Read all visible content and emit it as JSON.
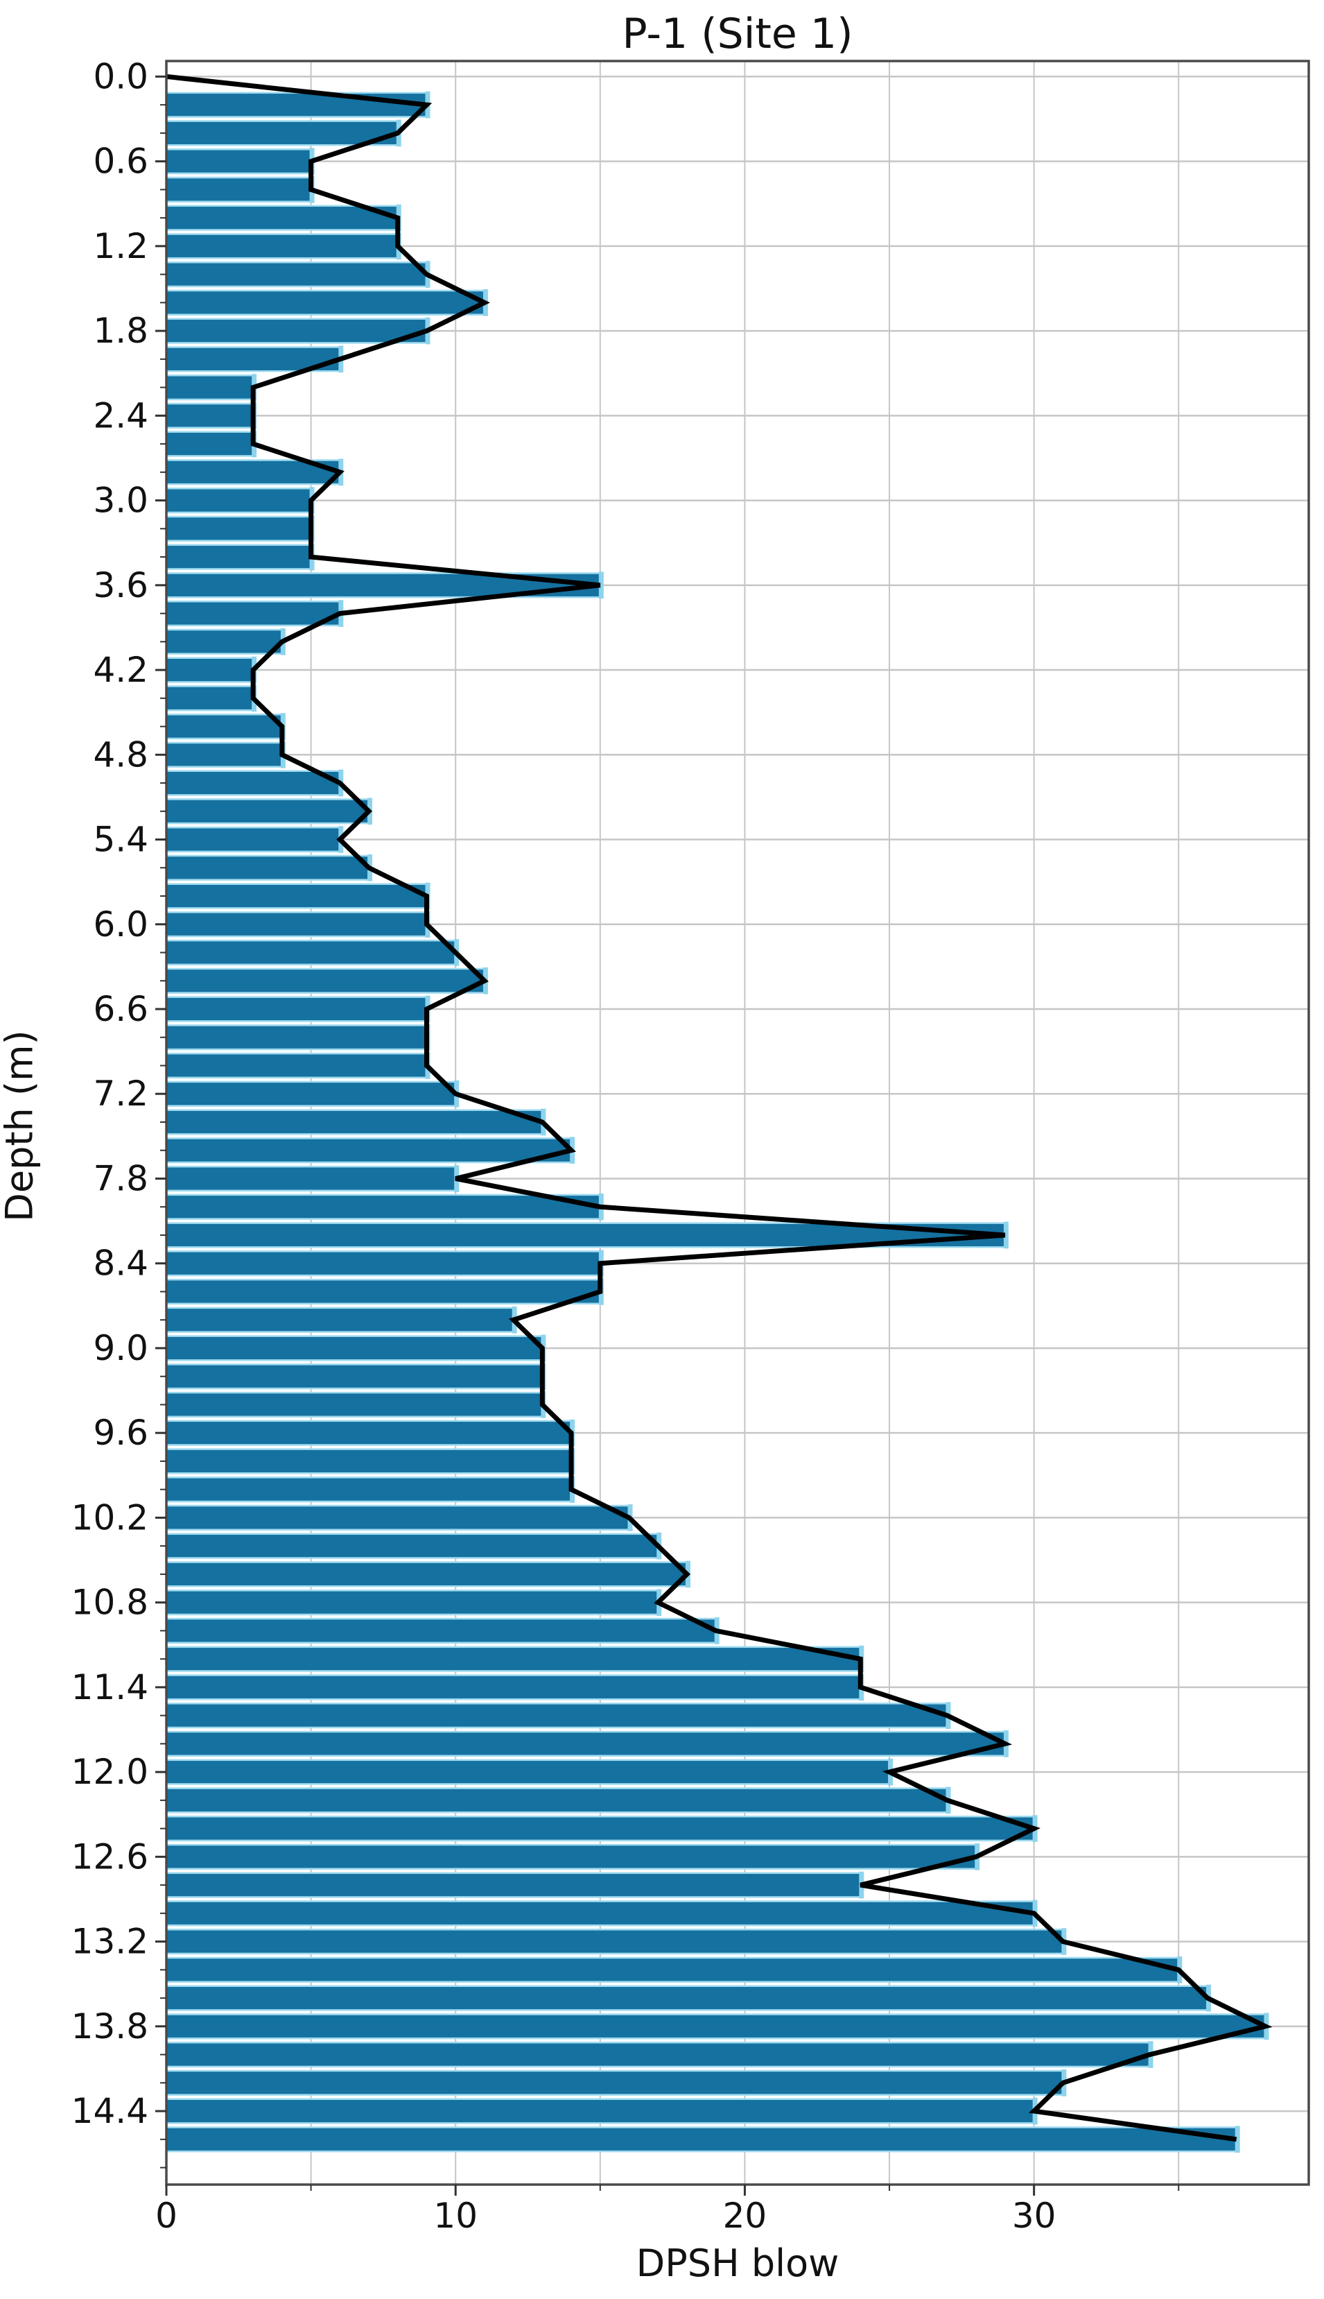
{
  "figure": {
    "title": "P-1 (Site 1)"
  },
  "chart_data": {
    "type": "bar",
    "orientation": "horizontal",
    "title": "P-1 (Site 1)",
    "xlabel": "DPSH blow",
    "ylabel": "Depth (m)",
    "xlim": [
      0,
      39.5
    ],
    "ylim": [
      -0.11,
      14.92
    ],
    "grid": true,
    "legend": "none",
    "x_tick_labels": [
      "0",
      "10",
      "20",
      "30"
    ],
    "x_tick_values": [
      0,
      10,
      20,
      30
    ],
    "x_grid_values": [
      5,
      10,
      15,
      20,
      25,
      30,
      35
    ],
    "x_minor_tick_values": [
      5,
      15,
      25,
      35
    ],
    "y_tick_labels": [
      "0.0",
      "0.6",
      "1.2",
      "1.8",
      "2.4",
      "3.0",
      "3.6",
      "4.2",
      "4.8",
      "5.4",
      "6.0",
      "6.6",
      "7.2",
      "7.8",
      "8.4",
      "9.0",
      "9.6",
      "10.2",
      "10.8",
      "11.4",
      "12.0",
      "12.6",
      "13.2",
      "13.8",
      "14.4"
    ],
    "y_tick_values": [
      0.0,
      0.6,
      1.2,
      1.8,
      2.4,
      3.0,
      3.6,
      4.2,
      4.8,
      5.4,
      6.0,
      6.6,
      7.2,
      7.8,
      8.4,
      9.0,
      9.6,
      10.2,
      10.8,
      11.4,
      12.0,
      12.6,
      13.2,
      13.8,
      14.4
    ],
    "y_minor_tick_interval": 0.2,
    "bar_thickness_m": 0.17,
    "depths": [
      0.2,
      0.4,
      0.6,
      0.8,
      1.0,
      1.2,
      1.4,
      1.6,
      1.8,
      2.0,
      2.2,
      2.4,
      2.6,
      2.8,
      3.0,
      3.2,
      3.4,
      3.6,
      3.8,
      4.0,
      4.2,
      4.4,
      4.6,
      4.8,
      5.0,
      5.2,
      5.4,
      5.6,
      5.8,
      6.0,
      6.2,
      6.4,
      6.6,
      6.8,
      7.0,
      7.2,
      7.4,
      7.6,
      7.8,
      8.0,
      8.2,
      8.4,
      8.6,
      8.8,
      9.0,
      9.2,
      9.4,
      9.6,
      9.8,
      10.0,
      10.2,
      10.4,
      10.6,
      10.8,
      11.0,
      11.2,
      11.4,
      11.6,
      11.8,
      12.0,
      12.2,
      12.4,
      12.6,
      12.8,
      13.0,
      13.2,
      13.4,
      13.6,
      13.8,
      14.0,
      14.2,
      14.4,
      14.6
    ],
    "values": [
      9,
      8,
      5,
      5,
      8,
      8,
      9,
      11,
      9,
      6,
      3,
      3,
      3,
      6,
      5,
      5,
      5,
      15,
      6,
      4,
      3,
      3,
      4,
      4,
      6,
      7,
      6,
      7,
      9,
      9,
      10,
      11,
      9,
      9,
      9,
      10,
      13,
      14,
      10,
      15,
      29,
      15,
      15,
      12,
      13,
      13,
      13,
      14,
      14,
      14,
      16,
      17,
      18,
      17,
      19,
      24,
      24,
      27,
      29,
      25,
      27,
      30,
      28,
      24,
      30,
      31,
      35,
      36,
      38,
      34,
      31,
      30,
      37
    ],
    "profile_line_start": [
      0,
      0.0
    ],
    "colors": {
      "bar_fill": "#15719f",
      "bar_edge": "#9edaef",
      "bar_cap": "#8ed3ec",
      "profile_line": "#000000",
      "grid": "#c6c6c6",
      "spine": "#4a4a4a",
      "tick": "#333333",
      "text": "#111111"
    }
  }
}
